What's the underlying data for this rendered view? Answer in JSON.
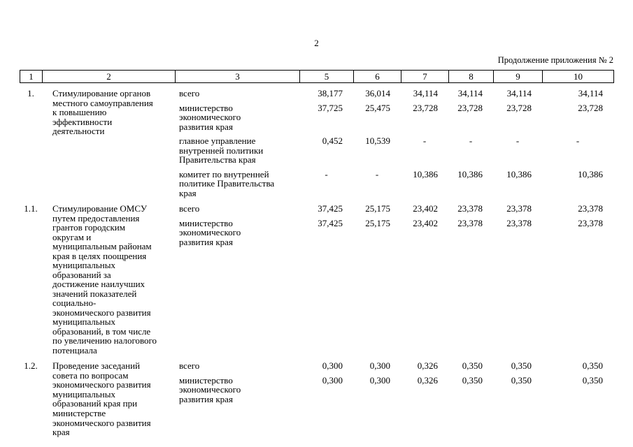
{
  "page": {
    "page_number": "2",
    "continuation_note": "Продолжение приложения № 2"
  },
  "table": {
    "header": [
      "1",
      "2",
      "3",
      "5",
      "6",
      "7",
      "8",
      "9",
      "10"
    ],
    "rows": [
      {
        "num": "1.",
        "title": "Стимулирование органов местного самоуправления к повышению эффективности деятельности",
        "entries": [
          {
            "label": "всего",
            "values": [
              "38,177",
              "36,014",
              "34,114",
              "34,114",
              "34,114",
              "34,114"
            ]
          },
          {
            "label": "министерство экономического развития края",
            "values": [
              "37,725",
              "25,475",
              "23,728",
              "23,728",
              "23,728",
              "23,728"
            ]
          },
          {
            "label": "главное управление внутренней политики Правительства края",
            "values": [
              "0,452",
              "10,539",
              "-",
              "-",
              "-",
              "-"
            ]
          },
          {
            "label": "комитет по внутренней политике Правительства края",
            "values": [
              "-",
              "-",
              "10,386",
              "10,386",
              "10,386",
              "10,386"
            ]
          }
        ]
      },
      {
        "num": "1.1.",
        "title": "Стимулирование ОМСУ путем предоставления грантов городским округам и муниципальным районам края в целях поощрения муниципальных образований за достижение наилучших значений показателей социально-экономического развития муниципальных образований, в том числе по увеличению налогового потенциала",
        "entries": [
          {
            "label": "всего",
            "values": [
              "37,425",
              "25,175",
              "23,402",
              "23,378",
              "23,378",
              "23,378"
            ]
          },
          {
            "label": "министерство экономического развития края",
            "values": [
              "37,425",
              "25,175",
              "23,402",
              "23,378",
              "23,378",
              "23,378"
            ]
          }
        ]
      },
      {
        "num": "1.2.",
        "title": "Проведение заседаний совета по вопросам экономического развития муниципальных образований края при министерстве экономического развития края",
        "entries": [
          {
            "label": "всего",
            "values": [
              "0,300",
              "0,300",
              "0,326",
              "0,350",
              "0,350",
              "0,350"
            ]
          },
          {
            "label": "министерство экономического развития края",
            "values": [
              "0,300",
              "0,300",
              "0,326",
              "0,350",
              "0,350",
              "0,350"
            ]
          }
        ]
      }
    ]
  }
}
